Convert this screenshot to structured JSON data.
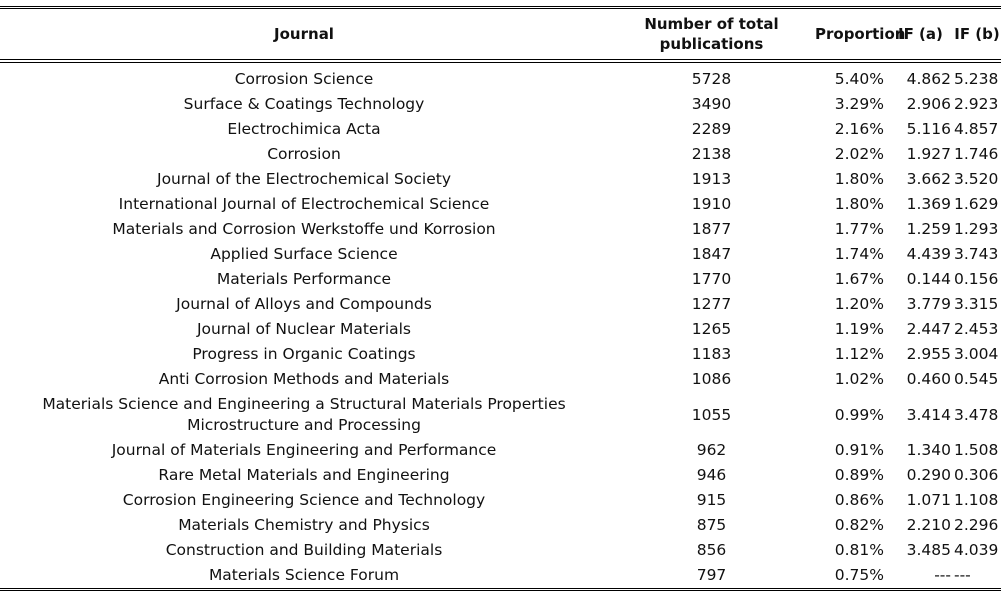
{
  "header": {
    "journal": "Journal",
    "number": "Number of total publications",
    "proportion": "Proportion",
    "if_a": "IF (a)",
    "if_b": "IF (b)"
  },
  "rows": [
    {
      "journal": "Corrosion Science",
      "number": "5728",
      "proportion": "5.40%",
      "if_a": "4.862",
      "if_b": "5.238"
    },
    {
      "journal": "Surface & Coatings Technology",
      "number": "3490",
      "proportion": "3.29%",
      "if_a": "2.906",
      "if_b": "2.923"
    },
    {
      "journal": "Electrochimica Acta",
      "number": "2289",
      "proportion": "2.16%",
      "if_a": "5.116",
      "if_b": "4.857"
    },
    {
      "journal": "Corrosion",
      "number": "2138",
      "proportion": "2.02%",
      "if_a": "1.927",
      "if_b": "1.746"
    },
    {
      "journal": "Journal of the Electrochemical Society",
      "number": "1913",
      "proportion": "1.80%",
      "if_a": "3.662",
      "if_b": "3.520"
    },
    {
      "journal": "International Journal of Electrochemical Science",
      "number": "1910",
      "proportion": "1.80%",
      "if_a": "1.369",
      "if_b": "1.629"
    },
    {
      "journal": "Materials and Corrosion Werkstoffe und Korrosion",
      "number": "1877",
      "proportion": "1.77%",
      "if_a": "1.259",
      "if_b": "1.293"
    },
    {
      "journal": "Applied Surface Science",
      "number": "1847",
      "proportion": "1.74%",
      "if_a": "4.439",
      "if_b": "3.743"
    },
    {
      "journal": "Materials Performance",
      "number": "1770",
      "proportion": "1.67%",
      "if_a": "0.144",
      "if_b": "0.156"
    },
    {
      "journal": "Journal of Alloys and Compounds",
      "number": "1277",
      "proportion": "1.20%",
      "if_a": "3.779",
      "if_b": "3.315"
    },
    {
      "journal": "Journal of Nuclear Materials",
      "number": "1265",
      "proportion": "1.19%",
      "if_a": "2.447",
      "if_b": "2.453"
    },
    {
      "journal": "Progress in Organic Coatings",
      "number": "1183",
      "proportion": "1.12%",
      "if_a": "2.955",
      "if_b": "3.004"
    },
    {
      "journal": "Anti Corrosion Methods and Materials",
      "number": "1086",
      "proportion": "1.02%",
      "if_a": "0.460",
      "if_b": "0.545"
    },
    {
      "journal": "Materials Science and Engineering a Structural Materials Properties Microstructure and Processing",
      "number": "1055",
      "proportion": "0.99%",
      "if_a": "3.414",
      "if_b": "3.478"
    },
    {
      "journal": "Journal of Materials Engineering and Performance",
      "number": "962",
      "proportion": "0.91%",
      "if_a": "1.340",
      "if_b": "1.508"
    },
    {
      "journal": "Rare Metal Materials and Engineering",
      "number": "946",
      "proportion": "0.89%",
      "if_a": "0.290",
      "if_b": "0.306"
    },
    {
      "journal": "Corrosion Engineering Science and Technology",
      "number": "915",
      "proportion": "0.86%",
      "if_a": "1.071",
      "if_b": "1.108"
    },
    {
      "journal": "Materials Chemistry and Physics",
      "number": "875",
      "proportion": "0.82%",
      "if_a": "2.210",
      "if_b": "2.296"
    },
    {
      "journal": "Construction and Building Materials",
      "number": "856",
      "proportion": "0.81%",
      "if_a": "3.485",
      "if_b": "4.039"
    },
    {
      "journal": "Materials Science Forum",
      "number": "797",
      "proportion": "0.75%",
      "if_a": "---",
      "if_b": "---"
    }
  ]
}
